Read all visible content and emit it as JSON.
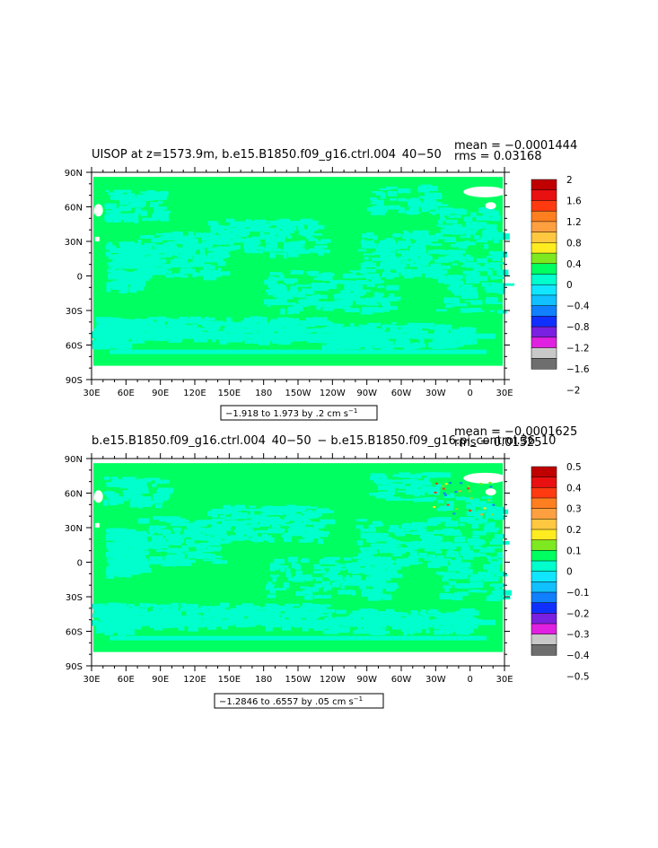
{
  "chart_data": [
    {
      "type": "heatmap",
      "title": "UISOP at z=1573.9m, b.e15.B1850.f09_g16.ctrl.004  40−50 ",
      "mean_label": "mean = −0.0001444",
      "rms_label": "rms = 0.03168",
      "range_label": "−1.918 to 1.973 by .2 cm s",
      "range_unit_exp": "−1",
      "x_ticks": [
        "30E",
        "60E",
        "90E",
        "120E",
        "150E",
        "180",
        "150W",
        "120W",
        "90W",
        "60W",
        "30W",
        "0",
        "30E"
      ],
      "y_ticks": [
        "90N",
        "60N",
        "30N",
        "0",
        "30S",
        "60S",
        "90S"
      ],
      "colorbar": {
        "levels": [
          "2",
          "1.6",
          "1.2",
          "0.8",
          "0.4",
          "0",
          "−0.4",
          "−0.8",
          "−1.2",
          "−1.6",
          "−2"
        ],
        "colors": [
          "#c00000",
          "#e81010",
          "#ff3a10",
          "#ff7f20",
          "#ffa040",
          "#ffc840",
          "#ffec20",
          "#7ee820",
          "#00ff60",
          "#00ffcc",
          "#10e6ff",
          "#10c0ff",
          "#1080ff",
          "#1030ff",
          "#7a20e0",
          "#e020e0",
          "#c8c8c8",
          "#6e6e6e"
        ]
      },
      "field_colors": {
        "dominant": "#00ff60",
        "secondary": "#00ffcc",
        "land": "#ffffff"
      }
    },
    {
      "type": "heatmap",
      "title": "b.e15.B1850.f09_g16.ctrl.004  40−50  − b.e15.B1850.f09_g16.pi_control.36  10",
      "mean_label": "mean = −0.0001625",
      "rms_label": "rms = 0.01525",
      "range_label": "−1.2846 to .6557 by .05 cm s",
      "range_unit_exp": "−1",
      "x_ticks": [
        "30E",
        "60E",
        "90E",
        "120E",
        "150E",
        "180",
        "150W",
        "120W",
        "90W",
        "60W",
        "30W",
        "0",
        "30E"
      ],
      "y_ticks": [
        "90N",
        "60N",
        "30N",
        "0",
        "30S",
        "60S",
        "90S"
      ],
      "colorbar": {
        "levels": [
          "0.5",
          "0.4",
          "0.3",
          "0.2",
          "0.1",
          "0",
          "−0.1",
          "−0.2",
          "−0.3",
          "−0.4",
          "−0.5"
        ],
        "colors": [
          "#c00000",
          "#e81010",
          "#ff3a10",
          "#ff7f20",
          "#ffa040",
          "#ffc840",
          "#ffec20",
          "#7ee820",
          "#00ff60",
          "#00ffcc",
          "#10e6ff",
          "#10c0ff",
          "#1080ff",
          "#1030ff",
          "#7a20e0",
          "#e020e0",
          "#c8c8c8",
          "#6e6e6e"
        ]
      },
      "field_colors": {
        "dominant": "#00ff60",
        "secondary": "#00ffcc",
        "land": "#ffffff"
      }
    }
  ]
}
